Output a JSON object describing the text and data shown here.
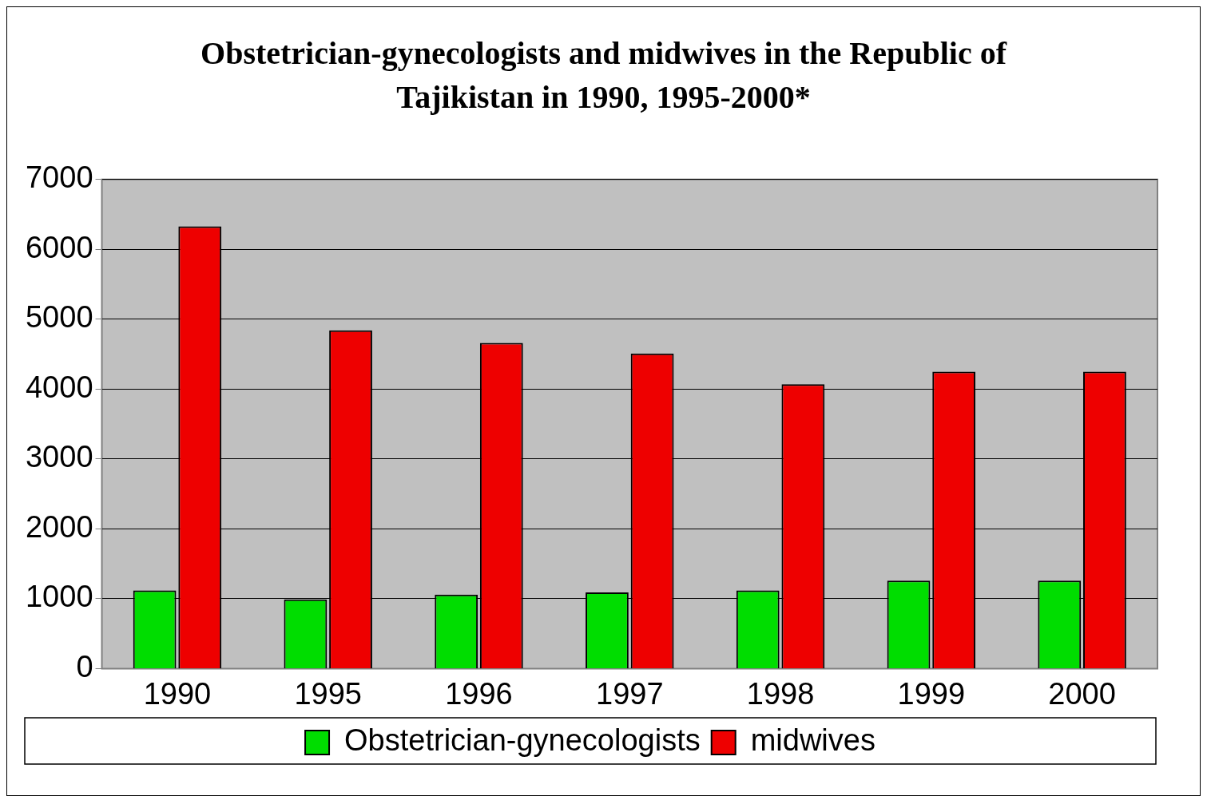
{
  "chart_data": {
    "type": "bar",
    "title": "Obstetrician-gynecologists and midwives in the Republic of Tajikistan in 1990, 1995-2000*",
    "categories": [
      "1990",
      "1995",
      "1996",
      "1997",
      "1998",
      "1999",
      "2000"
    ],
    "series": [
      {
        "name": "Obstetrician-gynecologists",
        "color": "#00dd00",
        "values": [
          1120,
          990,
          1060,
          1090,
          1120,
          1260,
          1260
        ]
      },
      {
        "name": "midwives",
        "color": "#ee0000",
        "values": [
          6330,
          4840,
          4660,
          4510,
          4070,
          4250,
          4250
        ]
      }
    ],
    "ylim": [
      0,
      7000
    ],
    "yticks": [
      0,
      1000,
      2000,
      3000,
      4000,
      5000,
      6000,
      7000
    ],
    "grid": "y",
    "legend": "bottom"
  }
}
